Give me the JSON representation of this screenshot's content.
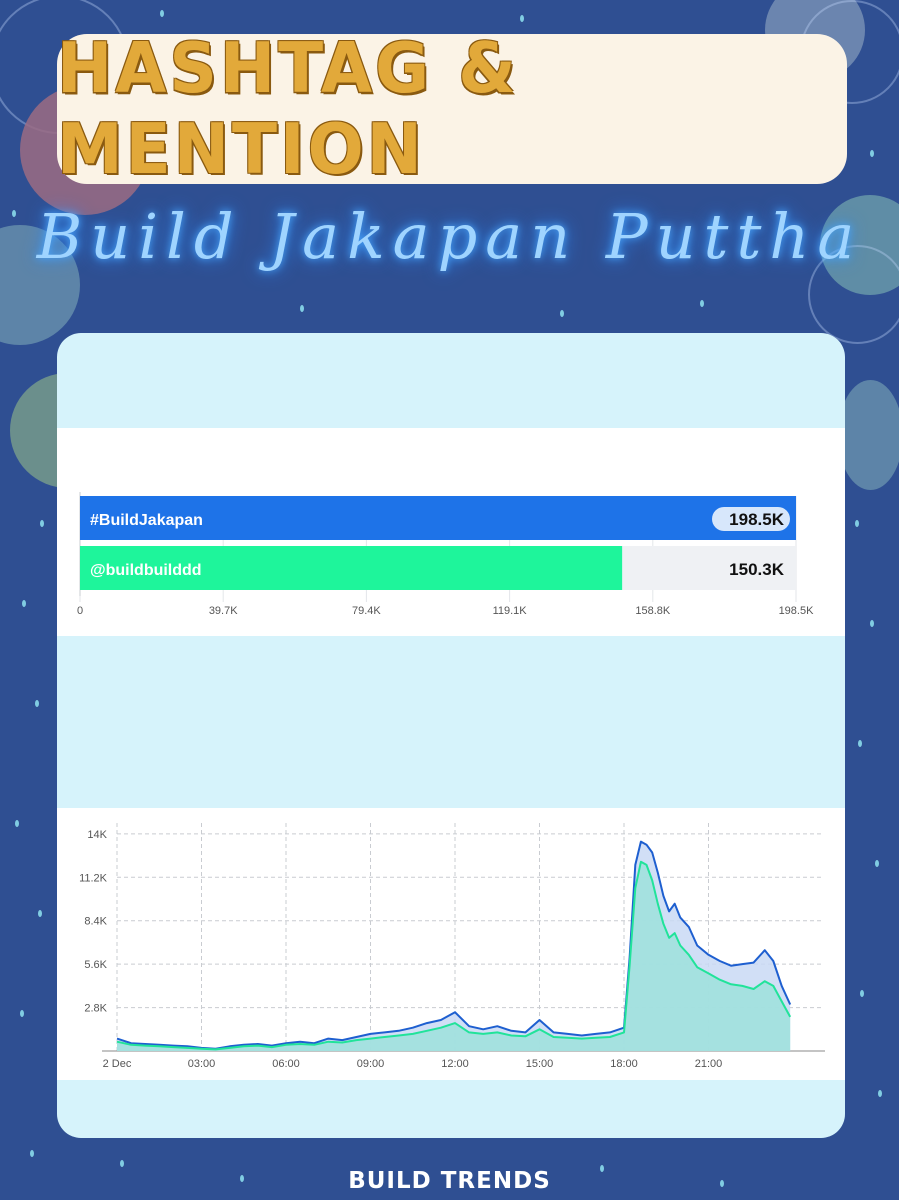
{
  "header": {
    "title": "HASHTAG & MENTION",
    "subtitle": "Build Jakapan Puttha"
  },
  "footer": {
    "brand": "BUILD TRENDS"
  },
  "chart_data": [
    {
      "type": "bar",
      "orientation": "horizontal",
      "categories": [
        "#BuildJakapan",
        "@buildbuilddd"
      ],
      "values": [
        198500,
        150300
      ],
      "value_labels": [
        "198.5K",
        "150.3K"
      ],
      "colors": [
        "#1e73e8",
        "#1ef59b"
      ],
      "xlim": [
        0,
        198500
      ],
      "xticks": [
        "0",
        "39.7K",
        "79.4K",
        "119.1K",
        "158.8K",
        "198.5K"
      ],
      "grid": true
    },
    {
      "type": "area",
      "x_ticks": [
        "2 Dec",
        "03:00",
        "06:00",
        "09:00",
        "12:00",
        "15:00",
        "18:00",
        "21:00"
      ],
      "y_ticks": [
        "2.8K",
        "5.6K",
        "8.4K",
        "11.2K",
        "14K"
      ],
      "y_tick_values": [
        2800,
        5600,
        8400,
        11200,
        14000
      ],
      "ylim": [
        0,
        14700
      ],
      "xlim": [
        0,
        24
      ],
      "grid": true,
      "series": [
        {
          "color": "#1e5fd0",
          "fill": "#c9d9f5",
          "x": [
            0,
            0.5,
            1,
            1.5,
            2,
            2.5,
            3,
            3.5,
            4,
            4.5,
            5,
            5.5,
            6,
            6.5,
            7,
            7.5,
            8,
            8.5,
            9,
            9.5,
            10,
            10.5,
            11,
            11.5,
            12,
            12.5,
            13,
            13.5,
            14,
            14.5,
            15,
            15.5,
            16,
            16.5,
            17,
            17.5,
            18,
            18.2,
            18.4,
            18.6,
            18.8,
            19,
            19.2,
            19.4,
            19.6,
            19.8,
            20,
            20.3,
            20.6,
            21,
            21.4,
            21.8,
            22.2,
            22.6,
            23,
            23.3,
            23.6,
            23.9
          ],
          "y": [
            800,
            500,
            450,
            400,
            350,
            300,
            200,
            150,
            300,
            400,
            450,
            350,
            500,
            600,
            500,
            800,
            700,
            900,
            1100,
            1200,
            1300,
            1500,
            1800,
            2000,
            2500,
            1600,
            1400,
            1600,
            1300,
            1200,
            2000,
            1200,
            1100,
            1000,
            1100,
            1200,
            1500,
            6000,
            12000,
            13500,
            13300,
            12800,
            11500,
            10000,
            9000,
            9500,
            8600,
            8000,
            6800,
            6200,
            5800,
            5500,
            5600,
            5700,
            6500,
            5800,
            4200,
            3000
          ]
        },
        {
          "color": "#21e39a",
          "fill": "#9ee2dc",
          "x": [
            0,
            0.5,
            1,
            1.5,
            2,
            2.5,
            3,
            3.5,
            4,
            4.5,
            5,
            5.5,
            6,
            6.5,
            7,
            7.5,
            8,
            8.5,
            9,
            9.5,
            10,
            10.5,
            11,
            11.5,
            12,
            12.5,
            13,
            13.5,
            14,
            14.5,
            15,
            15.5,
            16,
            16.5,
            17,
            17.5,
            18,
            18.2,
            18.4,
            18.6,
            18.8,
            19,
            19.2,
            19.4,
            19.6,
            19.8,
            20,
            20.3,
            20.6,
            21,
            21.4,
            21.8,
            22.2,
            22.6,
            23,
            23.3,
            23.6,
            23.9
          ],
          "y": [
            600,
            400,
            350,
            300,
            250,
            200,
            150,
            100,
            200,
            300,
            350,
            250,
            400,
            450,
            400,
            600,
            550,
            700,
            800,
            900,
            1000,
            1100,
            1300,
            1500,
            1800,
            1200,
            1100,
            1200,
            1000,
            950,
            1400,
            900,
            850,
            800,
            850,
            900,
            1200,
            5500,
            10500,
            12200,
            12000,
            11000,
            9500,
            8200,
            7300,
            7600,
            6800,
            6200,
            5400,
            5000,
            4600,
            4300,
            4200,
            4000,
            4500,
            4200,
            3200,
            2200
          ]
        }
      ]
    }
  ]
}
